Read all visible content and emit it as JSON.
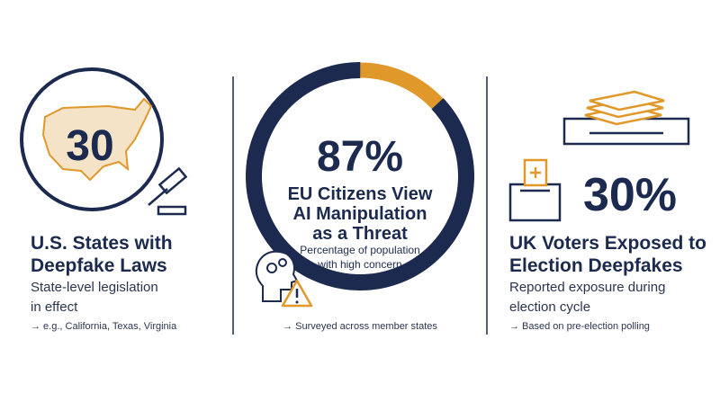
{
  "panels": [
    {
      "stat": "30",
      "title": [
        "U.S. States with",
        "Deepfake Laws"
      ],
      "description": [
        "State-level legislation",
        "in effect"
      ],
      "note": "→ e.g., California, Texas, Virginia"
    },
    {
      "stat": {
        "value": 87,
        "label": "87%"
      },
      "title": [
        "EU Citizens View",
        "AI Manipulation",
        "as a Threat"
      ],
      "description": [
        "Percentage of population",
        "with high concern"
      ],
      "note": "→ Surveyed across member states"
    },
    {
      "stat": "30%",
      "title": [
        "UK Voters Exposed to",
        "Election Deepfakes"
      ],
      "description": [
        "Reported exposure during",
        "election cycle"
      ],
      "note": "→ Based on pre-election polling"
    }
  ]
}
